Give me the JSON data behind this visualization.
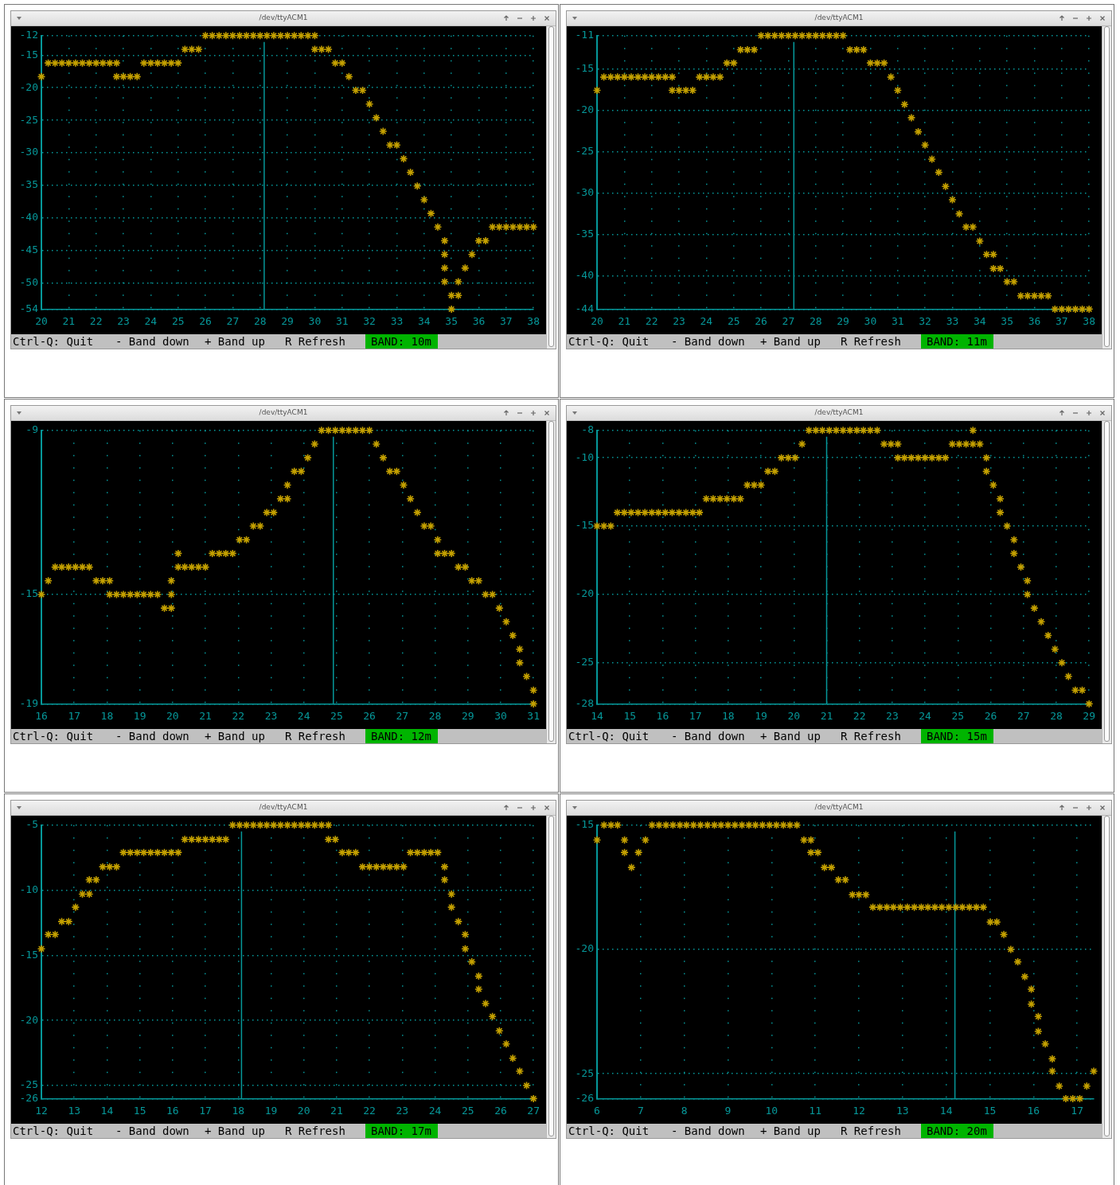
{
  "chart_data": [
    {
      "type": "scatter",
      "title": "/dev/ttyACM1",
      "marker": "cross",
      "grid": true,
      "xlim": [
        20,
        38
      ],
      "ylim": [
        -54,
        -12
      ],
      "xticks": [
        20,
        21,
        22,
        23,
        24,
        25,
        26,
        27,
        28,
        29,
        30,
        31,
        32,
        33,
        34,
        35,
        36,
        37,
        38
      ],
      "yticks": [
        -12,
        -15,
        -20,
        -25,
        -30,
        -35,
        -40,
        -45,
        -50,
        -54
      ],
      "ref_lines": [
        {
          "axis": "x",
          "value": 28.15,
          "color": "#06989a"
        }
      ],
      "annotations": [
        "Ctrl-Q: Quit",
        "- Band down",
        "+ Band up",
        "R Refresh",
        "BAND: 10m"
      ],
      "series": [
        {
          "color": "#c4a000",
          "x": [
            20,
            20.25,
            20.5,
            20.75,
            21,
            21.25,
            21.5,
            21.75,
            22,
            22.25,
            22.5,
            22.75,
            22.75,
            23,
            23.25,
            23.5,
            23.75,
            24,
            24.25,
            24.5,
            24.75,
            25,
            25.25,
            25.5,
            25.75,
            26,
            26.25,
            26.5,
            26.75,
            27,
            27.25,
            27.5,
            27.75,
            28,
            28.25,
            28.5,
            28.75,
            29,
            29.25,
            29.5,
            29.75,
            30,
            30,
            30.25,
            30.5,
            30.75,
            31,
            31.25,
            31.5,
            31.75,
            32,
            32.25,
            32.5,
            32.75,
            33,
            33.25,
            33.5,
            33.75,
            34,
            34.25,
            34.5,
            34.75,
            34.75,
            34.75,
            34.75,
            35,
            35.25,
            35,
            35.25,
            35.5,
            35.75,
            36,
            36.25,
            36.5,
            36.75,
            37,
            37.25,
            37.5,
            37.75,
            38
          ],
          "values": [
            -18.3,
            -16.2,
            -16.2,
            -16.2,
            -16.2,
            -16.2,
            -16.2,
            -16.2,
            -16.2,
            -16.2,
            -16.2,
            -16.2,
            -18.3,
            -18.3,
            -18.3,
            -18.3,
            -16.2,
            -16.2,
            -16.2,
            -16.2,
            -16.2,
            -16.2,
            -14.1,
            -14.1,
            -14.1,
            -12,
            -12,
            -12,
            -12,
            -12,
            -12,
            -12,
            -12,
            -12,
            -12,
            -12,
            -12,
            -12,
            -12,
            -12,
            -12,
            -12,
            -14.1,
            -14.1,
            -14.1,
            -16.2,
            -16.2,
            -18.3,
            -20.4,
            -20.4,
            -22.5,
            -24.6,
            -26.7,
            -28.8,
            -28.8,
            -30.9,
            -33,
            -35.1,
            -37.2,
            -39.3,
            -41.4,
            -43.5,
            -45.6,
            -47.7,
            -49.8,
            -51.9,
            -51.9,
            -54,
            -49.8,
            -47.7,
            -45.6,
            -43.5,
            -43.5,
            -41.4,
            -41.4,
            -41.4,
            -41.4,
            -41.4,
            -41.4,
            -41.4
          ]
        }
      ]
    },
    {
      "type": "scatter",
      "title": "/dev/ttyACM1",
      "marker": "cross",
      "grid": true,
      "xlim": [
        20,
        38
      ],
      "ylim": [
        -44,
        -11
      ],
      "xticks": [
        20,
        21,
        22,
        23,
        24,
        25,
        26,
        27,
        28,
        29,
        30,
        31,
        32,
        33,
        34,
        35,
        36,
        37,
        38
      ],
      "yticks": [
        -11,
        -15,
        -20,
        -25,
        -30,
        -35,
        -40,
        -44
      ],
      "ref_lines": [
        {
          "axis": "x",
          "value": 27.2,
          "color": "#06989a"
        }
      ],
      "annotations": [
        "Ctrl-Q: Quit",
        "- Band down",
        "+ Band up",
        "R Refresh",
        "BAND: 11m"
      ],
      "series": [
        {
          "color": "#c4a000",
          "x": [
            20,
            20.25,
            20.5,
            20.75,
            21,
            21.25,
            21.5,
            21.75,
            22,
            22.25,
            22.5,
            22.75,
            22.75,
            23,
            23.25,
            23.5,
            23.75,
            24,
            24.25,
            24.5,
            24.75,
            25,
            25.25,
            25.5,
            25.75,
            26,
            26.25,
            26.5,
            26.75,
            27,
            27.25,
            27.5,
            27.75,
            28,
            28.25,
            28.5,
            28.75,
            29,
            29.25,
            29.5,
            29.75,
            30,
            30.25,
            30.5,
            30.75,
            31,
            31.25,
            31.5,
            31.75,
            32,
            32.25,
            32.5,
            32.75,
            33,
            33.25,
            33.5,
            33.75,
            34,
            34.25,
            34.5,
            34.5,
            34.75,
            35,
            35.25,
            35.5,
            35.75,
            36,
            36.25,
            36.5,
            36.75,
            37,
            37.25,
            37.5,
            37.75,
            38
          ],
          "values": [
            -17.6,
            -16,
            -16,
            -16,
            -16,
            -16,
            -16,
            -16,
            -16,
            -16,
            -16,
            -16,
            -17.6,
            -17.6,
            -17.6,
            -17.6,
            -16,
            -16,
            -16,
            -16,
            -14.3,
            -14.3,
            -12.7,
            -12.7,
            -12.7,
            -11,
            -11,
            -11,
            -11,
            -11,
            -11,
            -11,
            -11,
            -11,
            -11,
            -11,
            -11,
            -11,
            -12.7,
            -12.7,
            -12.7,
            -14.3,
            -14.3,
            -14.3,
            -16,
            -17.6,
            -19.3,
            -20.9,
            -22.6,
            -24.2,
            -25.9,
            -27.5,
            -29.2,
            -30.8,
            -32.5,
            -34.1,
            -34.1,
            -35.8,
            -37.4,
            -37.4,
            -39.1,
            -39.1,
            -40.7,
            -40.7,
            -42.4,
            -42.4,
            -42.4,
            -42.4,
            -42.4,
            -44,
            -44,
            -44,
            -44,
            -44,
            -44
          ]
        }
      ]
    },
    {
      "type": "scatter",
      "title": "/dev/ttyACM1",
      "marker": "cross",
      "grid": true,
      "xlim": [
        16,
        31
      ],
      "ylim": [
        -19,
        -9
      ],
      "xticks": [
        16,
        17,
        18,
        19,
        20,
        21,
        22,
        23,
        24,
        25,
        26,
        27,
        28,
        29,
        30,
        31
      ],
      "yticks": [
        -9,
        -15,
        -19
      ],
      "ref_lines": [
        {
          "axis": "x",
          "value": 24.9,
          "color": "#06989a"
        }
      ],
      "annotations": [
        "Ctrl-Q: Quit",
        "- Band down",
        "+ Band up",
        "R Refresh",
        "BAND: 12m"
      ],
      "series": [
        {
          "color": "#c4a000",
          "x": [
            16,
            16.21,
            16.42,
            16.62,
            16.83,
            17.04,
            17.25,
            17.46,
            17.67,
            17.87,
            18.08,
            18.08,
            18.29,
            18.5,
            18.71,
            18.92,
            19.12,
            19.33,
            19.54,
            19.75,
            19.96,
            19.96,
            19.96,
            20.17,
            20.17,
            20.37,
            20.58,
            20.79,
            21,
            21.21,
            21.42,
            21.62,
            21.83,
            22.04,
            22.25,
            22.46,
            22.67,
            22.87,
            23.08,
            23.29,
            23.5,
            23.5,
            23.71,
            23.92,
            24.12,
            24.33,
            24.54,
            24.75,
            24.96,
            25.17,
            25.37,
            25.58,
            25.79,
            26,
            26.21,
            26.42,
            26.62,
            26.83,
            27.04,
            27.25,
            27.46,
            27.67,
            27.87,
            28.08,
            28.08,
            28.29,
            28.5,
            28.71,
            28.92,
            29.12,
            29.33,
            29.54,
            29.75,
            29.96,
            30.17,
            30.37,
            30.58,
            30.58,
            30.79,
            31,
            31
          ],
          "values": [
            -15,
            -14.5,
            -14,
            -14,
            -14,
            -14,
            -14,
            -14,
            -14.5,
            -14.5,
            -14.5,
            -15,
            -15,
            -15,
            -15,
            -15,
            -15,
            -15,
            -15,
            -15.5,
            -15.5,
            -15,
            -14.5,
            -13.5,
            -14,
            -14,
            -14,
            -14,
            -14,
            -13.5,
            -13.5,
            -13.5,
            -13.5,
            -13,
            -13,
            -12.5,
            -12.5,
            -12,
            -12,
            -11.5,
            -11.5,
            -11,
            -10.5,
            -10.5,
            -10,
            -9.5,
            -9,
            -9,
            -9,
            -9,
            -9,
            -9,
            -9,
            -9,
            -9.5,
            -10,
            -10.5,
            -10.5,
            -11,
            -11.5,
            -12,
            -12.5,
            -12.5,
            -13,
            -13.5,
            -13.5,
            -13.5,
            -14,
            -14,
            -14.5,
            -14.5,
            -15,
            -15,
            -15.5,
            -16,
            -16.5,
            -17,
            -17.5,
            -18,
            -18.5,
            -19
          ]
        }
      ]
    },
    {
      "type": "scatter",
      "title": "/dev/ttyACM1",
      "marker": "cross",
      "grid": true,
      "xlim": [
        14,
        29
      ],
      "ylim": [
        -28,
        -8
      ],
      "xticks": [
        14,
        15,
        16,
        17,
        18,
        19,
        20,
        21,
        22,
        23,
        24,
        25,
        26,
        27,
        28,
        29
      ],
      "yticks": [
        -8,
        -10,
        -15,
        -20,
        -25,
        -28
      ],
      "ref_lines": [
        {
          "axis": "x",
          "value": 21,
          "color": "#06989a"
        }
      ],
      "annotations": [
        "Ctrl-Q: Quit",
        "- Band down",
        "+ Band up",
        "R Refresh",
        "BAND: 15m"
      ],
      "series": [
        {
          "color": "#c4a000",
          "x": [
            14,
            14.21,
            14.42,
            14.62,
            14.83,
            15.04,
            15.25,
            15.46,
            15.67,
            15.87,
            16.08,
            16.29,
            16.5,
            16.71,
            16.92,
            17.12,
            17.33,
            17.54,
            17.75,
            17.96,
            18.17,
            18.37,
            18.58,
            18.79,
            19,
            19.21,
            19.42,
            19.62,
            19.83,
            20.04,
            20.25,
            20.46,
            20.67,
            20.87,
            21.08,
            21.29,
            21.5,
            21.71,
            21.92,
            22.12,
            22.33,
            22.54,
            22.75,
            22.96,
            23.17,
            23.17,
            23.37,
            23.58,
            23.79,
            24,
            24.21,
            24.42,
            24.62,
            24.83,
            25.04,
            25.25,
            25.46,
            25.46,
            25.67,
            25.87,
            25.87,
            26.08,
            26.29,
            26.29,
            26.5,
            26.71,
            26.71,
            26.92,
            27.12,
            27.12,
            27.33,
            27.54,
            27.75,
            27.96,
            28.17,
            28.37,
            28.58,
            28.79,
            29
          ],
          "values": [
            -15,
            -15,
            -15,
            -14,
            -14,
            -14,
            -14,
            -14,
            -14,
            -14,
            -14,
            -14,
            -14,
            -14,
            -14,
            -14,
            -13,
            -13,
            -13,
            -13,
            -13,
            -13,
            -12,
            -12,
            -12,
            -11,
            -11,
            -10,
            -10,
            -10,
            -9,
            -8,
            -8,
            -8,
            -8,
            -8,
            -8,
            -8,
            -8,
            -8,
            -8,
            -8,
            -9,
            -9,
            -9,
            -10,
            -10,
            -10,
            -10,
            -10,
            -10,
            -10,
            -10,
            -9,
            -9,
            -9,
            -8,
            -9,
            -9,
            -10,
            -11,
            -12,
            -13,
            -14,
            -15,
            -16,
            -17,
            -18,
            -19,
            -20,
            -21,
            -22,
            -23,
            -24,
            -25,
            -26,
            -27,
            -27,
            -28
          ]
        }
      ]
    },
    {
      "type": "scatter",
      "title": "/dev/ttyACM1",
      "marker": "cross",
      "grid": true,
      "xlim": [
        12,
        27
      ],
      "ylim": [
        -26,
        -5
      ],
      "xticks": [
        12,
        13,
        14,
        15,
        16,
        17,
        18,
        19,
        20,
        21,
        22,
        23,
        24,
        25,
        26,
        27
      ],
      "yticks": [
        -5,
        -10,
        -15,
        -20,
        -25,
        -26
      ],
      "ref_lines": [
        {
          "axis": "x",
          "value": 18.1,
          "color": "#06989a"
        }
      ],
      "annotations": [
        "Ctrl-Q: Quit",
        "- Band down",
        "+ Band up",
        "R Refresh",
        "BAND: 17m"
      ],
      "series": [
        {
          "color": "#c4a000",
          "x": [
            12,
            12.21,
            12.42,
            12.62,
            12.83,
            13.04,
            13.25,
            13.46,
            13.46,
            13.67,
            13.87,
            14.08,
            14.29,
            14.5,
            14.71,
            14.92,
            15.12,
            15.33,
            15.54,
            15.75,
            15.96,
            16.17,
            16.37,
            16.58,
            16.79,
            17,
            17.21,
            17.42,
            17.62,
            17.83,
            18.04,
            18.25,
            18.46,
            18.67,
            18.87,
            19.08,
            19.29,
            19.5,
            19.71,
            19.92,
            20.12,
            20.33,
            20.54,
            20.75,
            20.75,
            20.96,
            21.17,
            21.37,
            21.58,
            21.79,
            22,
            22.21,
            22.42,
            22.62,
            22.83,
            23.04,
            23.25,
            23.46,
            23.67,
            23.87,
            24.08,
            24.29,
            24.29,
            24.5,
            24.5,
            24.71,
            24.92,
            24.92,
            25.12,
            25.33,
            25.33,
            25.54,
            25.75,
            25.96,
            26.17,
            26.37,
            26.58,
            26.79,
            27
          ],
          "values": [
            -14.5,
            -13.4,
            -13.4,
            -12.4,
            -12.4,
            -11.3,
            -10.3,
            -10.3,
            -9.2,
            -9.2,
            -8.2,
            -8.2,
            -8.2,
            -7.1,
            -7.1,
            -7.1,
            -7.1,
            -7.1,
            -7.1,
            -7.1,
            -7.1,
            -7.1,
            -6.1,
            -6.1,
            -6.1,
            -6.1,
            -6.1,
            -6.1,
            -6.1,
            -5,
            -5,
            -5,
            -5,
            -5,
            -5,
            -5,
            -5,
            -5,
            -5,
            -5,
            -5,
            -5,
            -5,
            -5,
            -6.1,
            -6.1,
            -7.1,
            -7.1,
            -7.1,
            -8.2,
            -8.2,
            -8.2,
            -8.2,
            -8.2,
            -8.2,
            -8.2,
            -7.1,
            -7.1,
            -7.1,
            -7.1,
            -7.1,
            -8.2,
            -9.2,
            -10.3,
            -11.3,
            -12.4,
            -13.4,
            -14.5,
            -15.5,
            -16.6,
            -17.6,
            -18.7,
            -19.7,
            -20.8,
            -21.8,
            -22.9,
            -23.9,
            -25,
            -26
          ]
        }
      ]
    },
    {
      "type": "scatter",
      "title": "/dev/ttyACM1",
      "marker": "cross",
      "grid": true,
      "xlim": [
        6,
        17.38
      ],
      "ylim": [
        -26,
        -15
      ],
      "xticks": [
        6,
        7,
        8,
        9,
        10,
        11,
        12,
        13,
        14,
        15,
        16,
        17
      ],
      "yticks": [
        -15,
        -20,
        -25,
        -26
      ],
      "ref_lines": [
        {
          "axis": "x",
          "value": 14.2,
          "color": "#06989a"
        }
      ],
      "annotations": [
        "Ctrl-Q: Quit",
        "- Band down",
        "+ Band up",
        "R Refresh",
        "BAND: 20m"
      ],
      "series": [
        {
          "color": "#c4a000",
          "x": [
            6,
            6.16,
            6.32,
            6.47,
            6.63,
            6.63,
            6.79,
            6.95,
            7.11,
            7.26,
            7.42,
            7.58,
            7.74,
            7.9,
            8.05,
            8.21,
            8.37,
            8.53,
            8.69,
            8.84,
            9,
            9.16,
            9.32,
            9.48,
            9.63,
            9.79,
            9.95,
            10.11,
            10.27,
            10.42,
            10.58,
            10.74,
            10.9,
            10.9,
            11.06,
            11.21,
            11.37,
            11.53,
            11.69,
            11.85,
            12,
            12.16,
            12.32,
            12.48,
            12.64,
            12.79,
            12.95,
            13.11,
            13.27,
            13.43,
            13.58,
            13.74,
            13.9,
            14.06,
            14.22,
            14.37,
            14.53,
            14.69,
            14.85,
            15.01,
            15.16,
            15.32,
            15.48,
            15.64,
            15.8,
            15.95,
            15.95,
            16.11,
            16.11,
            16.27,
            16.43,
            16.43,
            16.59,
            16.74,
            16.9,
            17.06,
            17.22,
            17.38
          ],
          "values": [
            -15.6,
            -15,
            -15,
            -15,
            -15.6,
            -16.1,
            -16.7,
            -16.1,
            -15.6,
            -15,
            -15,
            -15,
            -15,
            -15,
            -15,
            -15,
            -15,
            -15,
            -15,
            -15,
            -15,
            -15,
            -15,
            -15,
            -15,
            -15,
            -15,
            -15,
            -15,
            -15,
            -15,
            -15.6,
            -15.6,
            -16.1,
            -16.1,
            -16.7,
            -16.7,
            -17.2,
            -17.2,
            -17.8,
            -17.8,
            -17.8,
            -18.3,
            -18.3,
            -18.3,
            -18.3,
            -18.3,
            -18.3,
            -18.3,
            -18.3,
            -18.3,
            -18.3,
            -18.3,
            -18.3,
            -18.3,
            -18.3,
            -18.3,
            -18.3,
            -18.3,
            -18.9,
            -18.9,
            -19.4,
            -20,
            -20.5,
            -21.1,
            -21.6,
            -22.2,
            -22.7,
            -23.3,
            -23.8,
            -24.4,
            -24.9,
            -25.5,
            -26,
            -26,
            -26,
            -25.5,
            -24.9
          ]
        }
      ]
    }
  ]
}
